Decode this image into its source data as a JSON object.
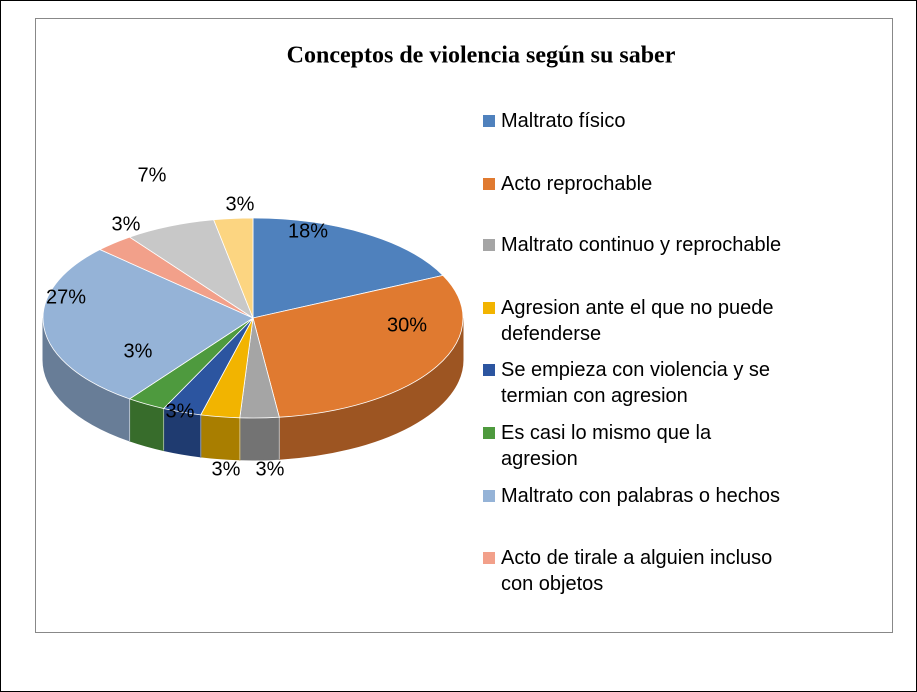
{
  "chart_data": {
    "type": "pie3d",
    "title": "Conceptos de violencia según su saber",
    "categories": [
      "Maltrato físico",
      "Acto reprochable",
      "Maltrato continuo y reprochable",
      "Agresion ante el que no puede defenderse",
      "Se empieza con violencia y se termian con agresion",
      "Es casi lo mismo que la agresion",
      "Maltrato con palabras o hechos",
      "Acto de tirale a alguien incluso con objetos",
      null,
      null
    ],
    "values": [
      18,
      30,
      3,
      3,
      3,
      3,
      27,
      3,
      7,
      3
    ],
    "value_labels": [
      "18%",
      "30%",
      "3%",
      "3%",
      "3%",
      "3%",
      "27%",
      "3%",
      "7%",
      "3%"
    ],
    "colors": [
      "#4f81bd",
      "#e07a30",
      "#a5a5a5",
      "#f2b400",
      "#2c55a0",
      "#4e9a3e",
      "#95b3d7",
      "#f2a08a",
      "#c8c8c8",
      "#fcd581"
    ],
    "legend": "right"
  }
}
